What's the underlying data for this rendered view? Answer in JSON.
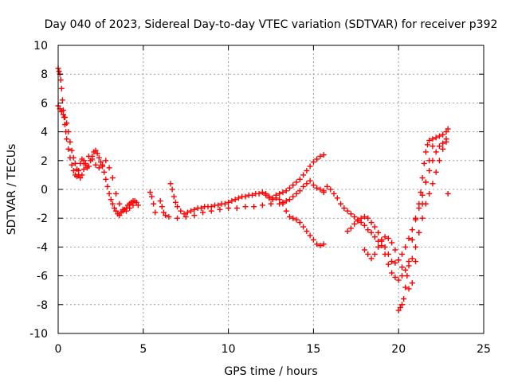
{
  "chart_data": {
    "type": "scatter",
    "title": "Day 040 of 2023, Sidereal Day-to-day VTEC variation (SDTVAR) for receiver p392",
    "xlabel": "GPS time / hours",
    "ylabel": "SDTVAR / TECUs",
    "xlim": [
      0,
      25
    ],
    "ylim": [
      -10,
      10
    ],
    "xticks": [
      "0",
      "5",
      "10",
      "15",
      "20",
      "25"
    ],
    "yticks": [
      "-10",
      "-8",
      "-6",
      "-4",
      "-2",
      "0",
      "2",
      "4",
      "6",
      "8",
      "10"
    ],
    "grid": true,
    "marker": "+",
    "color": "#ff0000",
    "series": [
      {
        "name": "SDTVAR",
        "x": [
          0.0,
          0.05,
          0.1,
          0.15,
          0.2,
          0.25,
          0.3,
          0.35,
          0.4,
          0.45,
          0.5,
          0.6,
          0.7,
          0.8,
          0.9,
          1.0,
          1.1,
          1.2,
          1.3,
          1.4,
          1.5,
          1.6,
          1.7,
          1.8,
          1.9,
          2.0,
          2.1,
          2.2,
          2.3,
          2.4,
          2.5,
          2.6,
          2.7,
          2.8,
          2.9,
          3.0,
          3.1,
          3.2,
          3.3,
          3.4,
          3.5,
          3.6,
          3.7,
          3.8,
          3.9,
          4.0,
          4.1,
          4.2,
          4.3,
          4.4,
          4.5,
          4.6,
          4.7,
          0.0,
          0.1,
          0.2,
          0.3,
          0.4,
          0.5,
          0.6,
          0.7,
          0.8,
          0.9,
          1.0,
          1.1,
          1.2,
          1.3,
          1.4,
          1.5,
          1.6,
          1.8,
          2.0,
          2.2,
          2.4,
          2.6,
          2.8,
          3.0,
          3.2,
          3.4,
          3.6,
          3.8,
          4.0,
          4.2,
          4.4,
          5.4,
          5.5,
          5.6,
          5.7,
          6.0,
          6.1,
          6.2,
          6.3,
          6.5,
          6.6,
          6.7,
          6.8,
          6.9,
          7.0,
          7.2,
          7.4,
          7.6,
          7.8,
          8.0,
          8.2,
          8.4,
          8.6,
          8.8,
          9.0,
          9.2,
          9.4,
          9.6,
          9.8,
          10.0,
          10.2,
          10.4,
          10.6,
          10.8,
          11.0,
          11.2,
          11.4,
          11.6,
          11.8,
          12.0,
          12.2,
          12.4,
          12.6,
          12.8,
          13.0,
          13.2,
          13.4,
          13.6,
          13.8,
          14.0,
          14.2,
          14.4,
          14.6,
          14.8,
          15.0,
          15.2,
          15.4,
          15.6,
          7.0,
          7.5,
          8.0,
          8.5,
          9.0,
          9.5,
          10.0,
          10.5,
          11.0,
          11.5,
          12.0,
          12.5,
          13.0,
          13.2,
          13.4,
          13.6,
          13.8,
          14.0,
          14.2,
          14.4,
          14.6,
          14.8,
          15.0,
          15.2,
          15.4,
          15.6,
          12.2,
          12.4,
          12.6,
          12.8,
          13.0,
          13.2,
          13.4,
          13.6,
          13.8,
          14.0,
          14.2,
          14.4,
          14.6,
          14.8,
          15.0,
          15.2,
          15.4,
          15.6,
          15.6,
          15.8,
          16.0,
          16.2,
          16.4,
          16.6,
          16.8,
          17.0,
          17.2,
          17.4,
          17.6,
          17.8,
          18.0,
          18.2,
          18.4,
          18.6,
          18.8,
          19.0,
          19.2,
          19.4,
          19.6,
          19.8,
          20.0,
          20.2,
          17.0,
          17.2,
          17.4,
          17.6,
          17.8,
          18.0,
          18.2,
          18.4,
          18.6,
          18.8,
          19.0,
          19.2,
          19.4,
          19.6,
          19.8,
          20.0,
          20.2,
          20.4,
          20.6,
          20.8,
          21.0,
          21.2,
          21.4,
          21.6,
          21.8,
          22.0,
          22.2,
          22.4,
          22.6,
          22.8,
          18.0,
          18.2,
          18.4,
          18.6,
          18.8,
          19.0,
          19.2,
          19.4,
          19.6,
          19.8,
          20.0,
          20.2,
          20.4,
          20.6,
          20.8,
          21.0,
          21.2,
          21.4,
          21.6,
          21.8,
          22.0,
          22.2,
          22.4,
          22.6,
          22.8,
          20.0,
          20.1,
          20.2,
          20.3,
          20.4,
          20.5,
          20.6,
          20.8,
          21.0,
          21.2,
          21.3,
          21.4,
          21.5,
          21.6,
          21.7,
          21.8,
          22.0,
          22.2,
          22.4,
          22.6,
          22.8,
          22.9,
          20.6,
          20.8,
          21.0,
          21.2,
          21.4,
          21.6,
          21.8,
          22.0,
          22.9
        ],
        "y": [
          8.4,
          8.2,
          8.0,
          7.6,
          7.0,
          6.2,
          5.5,
          5.0,
          4.5,
          4.0,
          3.5,
          2.8,
          2.2,
          1.7,
          1.3,
          1.0,
          0.9,
          1.3,
          1.8,
          2.1,
          2.0,
          1.7,
          1.5,
          1.6,
          2.0,
          2.3,
          2.6,
          2.7,
          2.5,
          2.2,
          1.9,
          1.6,
          1.2,
          0.7,
          0.2,
          -0.3,
          -0.7,
          -1.0,
          -1.3,
          -1.5,
          -1.7,
          -1.8,
          -1.6,
          -1.5,
          -1.4,
          -1.3,
          -1.1,
          -1.0,
          -0.9,
          -0.8,
          -0.8,
          -0.9,
          -1.1,
          5.8,
          5.6,
          5.4,
          5.2,
          5.0,
          4.6,
          4.0,
          3.3,
          2.7,
          2.2,
          1.8,
          1.4,
          1.0,
          0.8,
          1.0,
          1.4,
          1.8,
          2.3,
          2.1,
          1.7,
          1.5,
          1.7,
          2.0,
          1.5,
          0.8,
          -0.3,
          -1.0,
          -1.4,
          -1.5,
          -1.3,
          -1.1,
          -0.2,
          -0.5,
          -1.0,
          -1.6,
          -0.8,
          -1.2,
          -1.6,
          -1.8,
          -1.9,
          0.4,
          0.0,
          -0.5,
          -0.9,
          -1.2,
          -1.5,
          -1.7,
          -1.6,
          -1.5,
          -1.4,
          -1.3,
          -1.3,
          -1.2,
          -1.2,
          -1.2,
          -1.1,
          -1.1,
          -1.0,
          -1.0,
          -0.9,
          -0.8,
          -0.7,
          -0.6,
          -0.5,
          -0.5,
          -0.4,
          -0.4,
          -0.3,
          -0.3,
          -0.2,
          -0.3,
          -0.5,
          -0.6,
          -0.4,
          -0.3,
          -0.2,
          -0.1,
          0.1,
          0.3,
          0.5,
          0.7,
          1.0,
          1.3,
          1.6,
          1.9,
          2.1,
          2.3,
          2.4,
          -2.0,
          -1.9,
          -1.8,
          -1.6,
          -1.5,
          -1.4,
          -1.3,
          -1.3,
          -1.2,
          -1.2,
          -1.1,
          -1.0,
          -1.0,
          -0.9,
          -0.8,
          -0.7,
          -0.5,
          -0.3,
          -0.1,
          0.2,
          0.4,
          0.6,
          0.3,
          0.1,
          0.0,
          -0.2,
          -0.4,
          -0.6,
          -0.7,
          -0.6,
          -0.7,
          -1.0,
          -1.5,
          -1.9,
          -2.0,
          -2.1,
          -2.3,
          -2.6,
          -2.9,
          -3.2,
          -3.5,
          -3.8,
          -3.9,
          -3.8,
          -0.1,
          0.2,
          0.0,
          -0.3,
          -0.6,
          -1.0,
          -1.3,
          -1.5,
          -1.7,
          -1.9,
          -2.1,
          -2.3,
          -2.5,
          -2.8,
          -3.0,
          -3.3,
          -3.6,
          -3.9,
          -4.5,
          -5.2,
          -5.8,
          -6.1,
          -6.3,
          -6.0,
          -2.9,
          -2.7,
          -2.4,
          -2.2,
          -2.0,
          -1.9,
          -2.0,
          -2.3,
          -2.6,
          -3.0,
          -3.5,
          -4.0,
          -4.5,
          -5.0,
          -5.1,
          -4.9,
          -4.5,
          -4.0,
          -3.4,
          -2.8,
          -2.1,
          -1.3,
          -0.4,
          0.5,
          1.3,
          2.0,
          2.6,
          3.0,
          3.2,
          3.3,
          -4.2,
          -4.5,
          -4.8,
          -4.5,
          -4.0,
          -3.6,
          -3.3,
          -3.4,
          -3.7,
          -4.2,
          -4.9,
          -5.4,
          -5.6,
          -5.3,
          -4.8,
          -4.0,
          -3.0,
          -2.0,
          -1.0,
          -0.3,
          0.4,
          1.2,
          2.0,
          2.8,
          3.5,
          -8.4,
          -8.2,
          -8.0,
          -7.6,
          -6.8,
          -6.0,
          -5.0,
          -3.5,
          -2.0,
          -1.0,
          -0.2,
          0.8,
          1.8,
          2.6,
          3.1,
          3.4,
          3.5,
          3.6,
          3.7,
          3.8,
          4.0,
          4.2,
          -6.9,
          -6.5,
          -5.0,
          -3.0,
          -1.0,
          0.5,
          2.0,
          3.0,
          -0.3
        ]
      }
    ]
  }
}
